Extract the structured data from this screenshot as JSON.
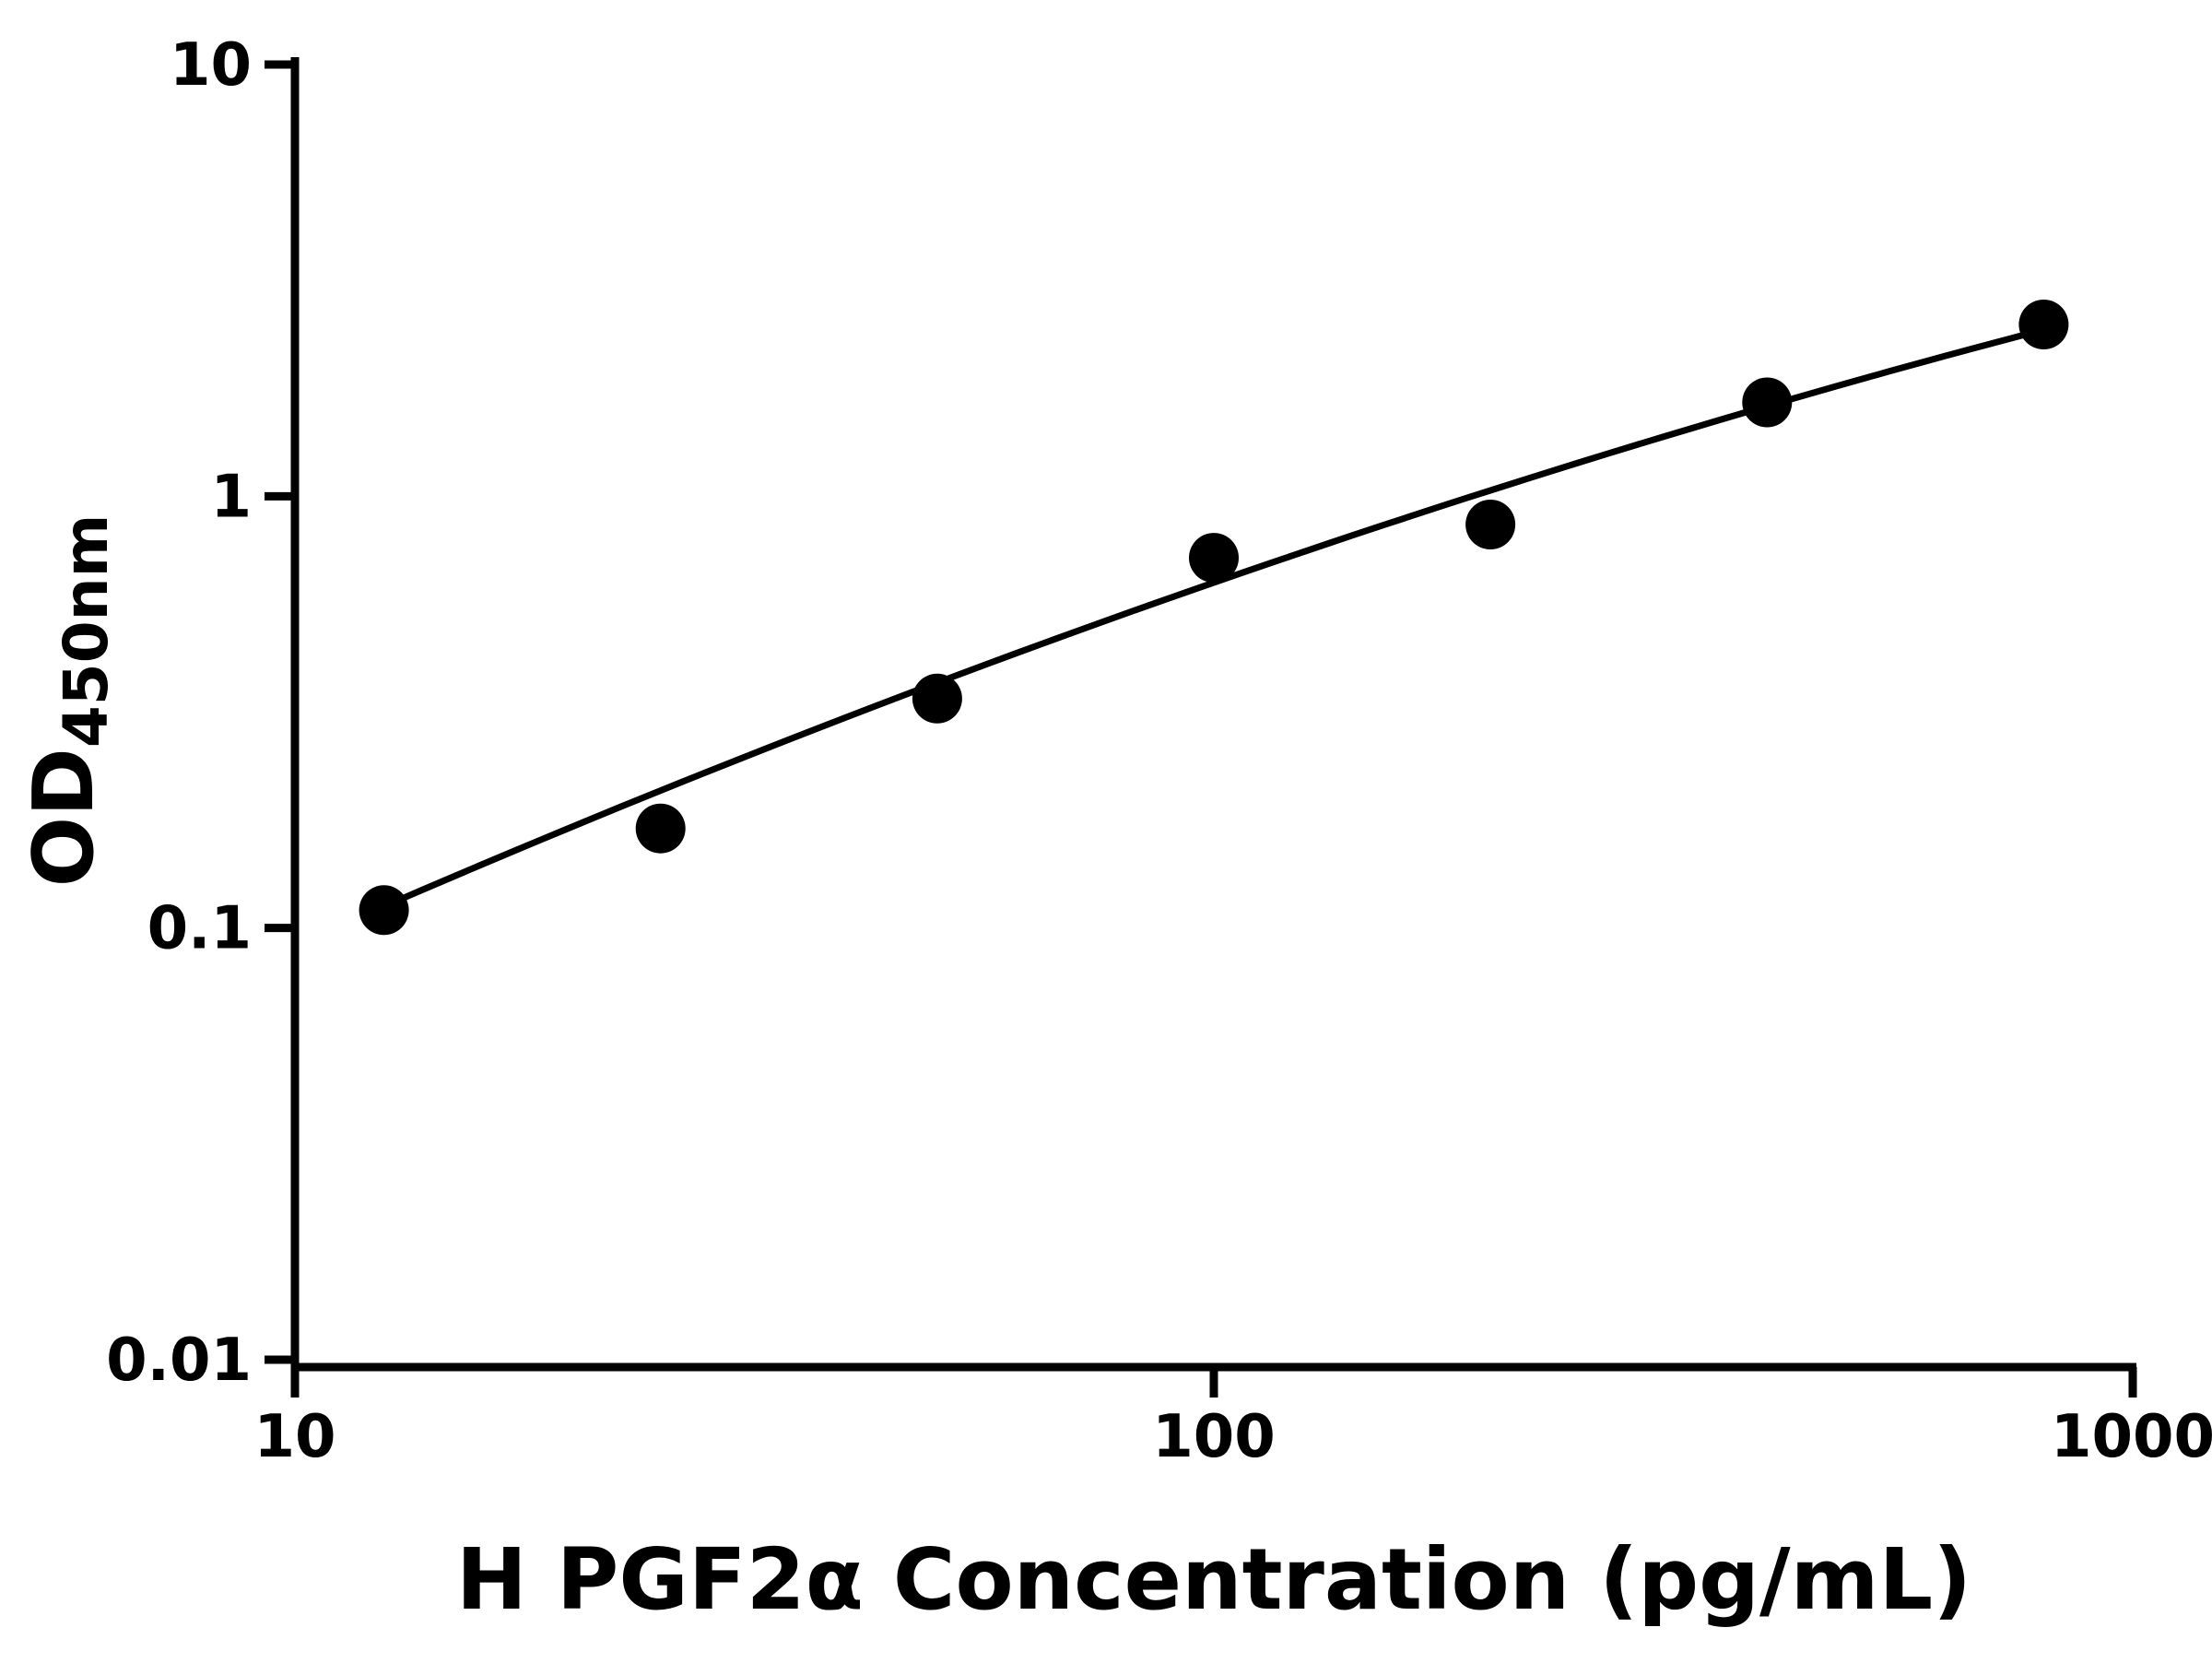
{
  "page": {
    "background_color": "#ffffff",
    "foreground_color": "#000000"
  },
  "chart_data": {
    "type": "scatter",
    "xlabel": "H PGF2α Concentration (pg/mL)",
    "ylabel": {
      "main": "OD",
      "sub": "450nm"
    },
    "x_scale": "log",
    "y_scale": "log",
    "xlim": [
      10,
      1000
    ],
    "ylim": [
      0.01,
      10
    ],
    "grid": false,
    "legend": false,
    "x_ticks": {
      "values": [
        10,
        100,
        1000
      ],
      "labels": [
        "10",
        "100",
        "1000"
      ]
    },
    "y_ticks": {
      "values": [
        10,
        1,
        0.1,
        0.01
      ],
      "labels": [
        "10",
        "1",
        "0.1",
        "0.01"
      ]
    },
    "series": [
      {
        "name": "standard-points",
        "type": "scatter",
        "marker": "circle",
        "color": "#000000",
        "x": [
          12.5,
          25,
          50,
          100,
          200,
          400,
          800
        ],
        "y": [
          0.11,
          0.17,
          0.34,
          0.72,
          0.86,
          1.65,
          2.5
        ]
      },
      {
        "name": "fit-curve",
        "type": "line",
        "color": "#000000",
        "model": "quadratic-loglog",
        "coefficients": {
          "p0": -2.0823,
          "p1": 1.1428,
          "p2": -0.1008
        },
        "x_range": [
          12,
          830
        ]
      }
    ]
  }
}
